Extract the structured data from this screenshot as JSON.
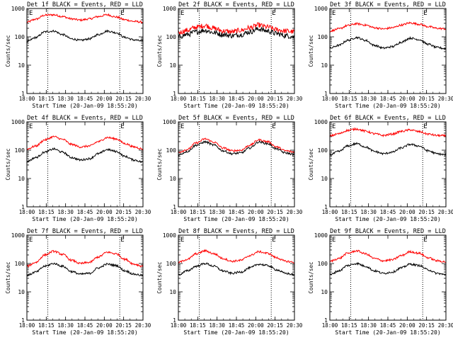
{
  "shared": {
    "xlabel": "Start Time (20-Jan-09 18:55:20)",
    "ylabel": "Counts/sec",
    "xticks": [
      "18:00",
      "18:15",
      "18:30",
      "18:45",
      "20:00",
      "20:15",
      "20:30"
    ],
    "yticks": [
      "1",
      "10",
      "100",
      "1000"
    ],
    "ylim": [
      1,
      1000
    ],
    "yscale": "log",
    "event_markers": [
      "E",
      "E"
    ],
    "colors": {
      "events": "#000000",
      "lld": "#ff0000",
      "axis": "#000000"
    }
  },
  "chart_data": [
    {
      "type": "line",
      "title": "Det 1f BLACK = Events, RED = LLD",
      "series": [
        {
          "values": [
            68,
            95,
            150,
            160,
            120,
            85,
            75,
            85,
            120,
            160,
            140,
            95,
            78,
            70
          ]
        },
        {
          "values": [
            330,
            420,
            580,
            600,
            520,
            430,
            390,
            430,
            520,
            600,
            500,
            400,
            350,
            330
          ]
        }
      ]
    },
    {
      "type": "line",
      "title": "Det 2f BLACK = Events, RED = LLD",
      "series": [
        {
          "values": [
            100,
            120,
            150,
            170,
            140,
            120,
            110,
            120,
            150,
            190,
            160,
            130,
            110,
            100
          ]
        },
        {
          "values": [
            140,
            170,
            220,
            250,
            200,
            160,
            150,
            170,
            210,
            260,
            220,
            180,
            160,
            150
          ]
        }
      ]
    },
    {
      "type": "line",
      "title": "Det 3f BLACK = Events, RED = LLD",
      "series": [
        {
          "values": [
            40,
            50,
            75,
            95,
            75,
            50,
            40,
            45,
            65,
            90,
            80,
            55,
            42,
            38
          ]
        },
        {
          "values": [
            160,
            190,
            250,
            290,
            260,
            210,
            190,
            210,
            260,
            310,
            280,
            230,
            200,
            190
          ]
        }
      ]
    },
    {
      "type": "line",
      "title": "Det 4f BLACK = Events, RED = LLD",
      "series": [
        {
          "values": [
            40,
            55,
            85,
            110,
            85,
            55,
            45,
            50,
            75,
            105,
            90,
            60,
            45,
            38
          ]
        },
        {
          "values": [
            110,
            140,
            230,
            300,
            240,
            160,
            130,
            140,
            200,
            280,
            250,
            170,
            130,
            110
          ]
        }
      ]
    },
    {
      "type": "line",
      "title": "Det 5f BLACK = Events, RED = LLD",
      "series": [
        {
          "values": [
            68,
            90,
            150,
            195,
            150,
            95,
            75,
            80,
            120,
            195,
            170,
            110,
            80,
            70
          ]
        },
        {
          "values": [
            85,
            105,
            180,
            250,
            190,
            120,
            95,
            100,
            150,
            230,
            200,
            130,
            95,
            85
          ]
        }
      ]
    },
    {
      "type": "line",
      "title": "Det 6f BLACK = Events, RED = LLD",
      "series": [
        {
          "values": [
            68,
            90,
            140,
            170,
            130,
            90,
            75,
            85,
            120,
            160,
            140,
            95,
            75,
            68
          ]
        },
        {
          "values": [
            320,
            380,
            500,
            560,
            470,
            380,
            330,
            370,
            460,
            520,
            450,
            370,
            330,
            320
          ]
        }
      ]
    },
    {
      "type": "line",
      "title": "Det 7f BLACK = Events, RED = LLD",
      "series": [
        {
          "values": [
            38,
            50,
            80,
            100,
            80,
            52,
            42,
            45,
            70,
            95,
            85,
            55,
            42,
            38
          ]
        },
        {
          "values": [
            80,
            110,
            200,
            270,
            210,
            130,
            100,
            110,
            170,
            250,
            220,
            140,
            95,
            80
          ]
        }
      ]
    },
    {
      "type": "line",
      "title": "Det 8f BLACK = Events, RED = LLD",
      "series": [
        {
          "values": [
            40,
            55,
            80,
            100,
            80,
            55,
            45,
            50,
            70,
            95,
            85,
            60,
            45,
            40
          ]
        },
        {
          "values": [
            110,
            140,
            220,
            280,
            220,
            150,
            120,
            130,
            190,
            260,
            230,
            160,
            120,
            110
          ]
        }
      ]
    },
    {
      "type": "line",
      "title": "Det 9f BLACK = Events, RED = LLD",
      "series": [
        {
          "values": [
            40,
            55,
            85,
            100,
            80,
            55,
            45,
            50,
            70,
            95,
            85,
            60,
            45,
            40
          ]
        },
        {
          "values": [
            120,
            150,
            230,
            280,
            220,
            150,
            125,
            135,
            190,
            260,
            230,
            160,
            125,
            115
          ]
        }
      ]
    }
  ]
}
